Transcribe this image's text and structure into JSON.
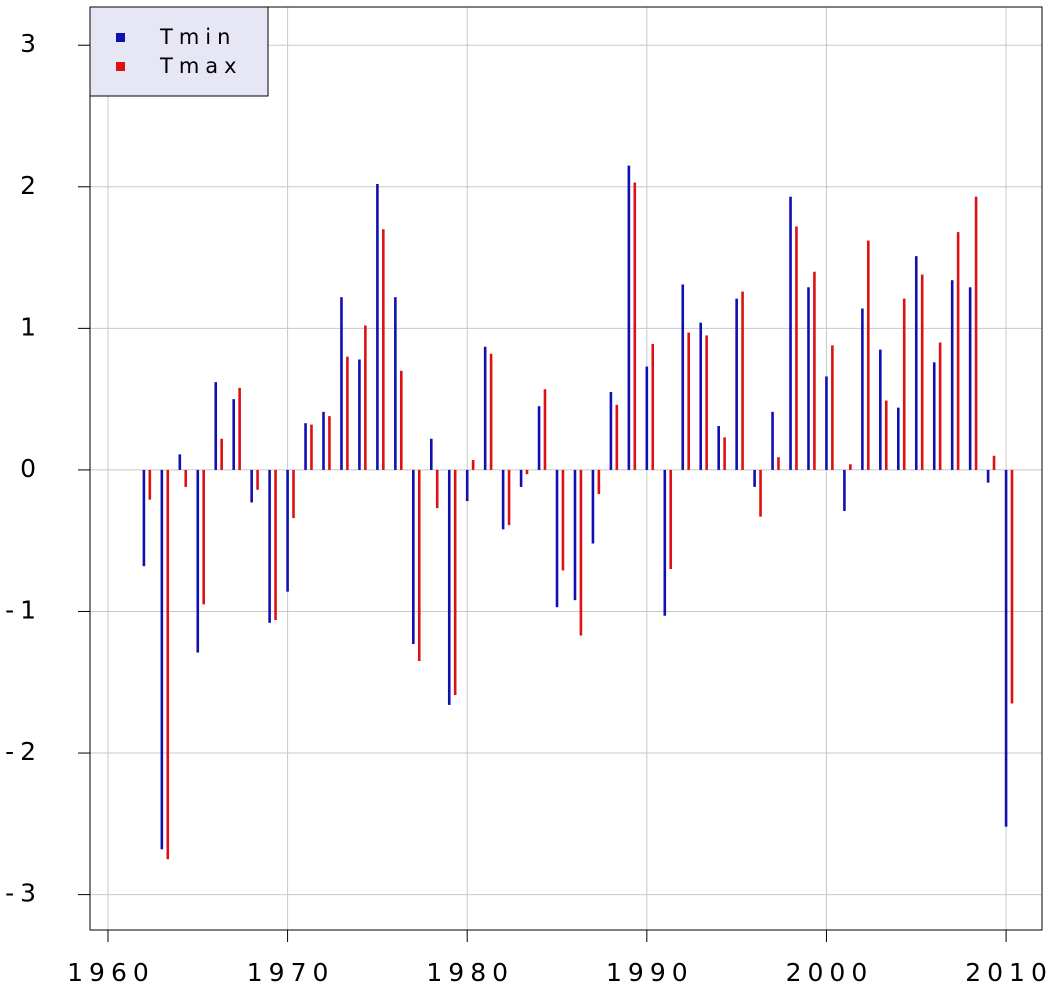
{
  "chart_data": {
    "type": "bar",
    "x": [
      1962,
      1963,
      1964,
      1965,
      1966,
      1967,
      1968,
      1969,
      1970,
      1971,
      1972,
      1973,
      1974,
      1975,
      1976,
      1977,
      1978,
      1979,
      1980,
      1981,
      1982,
      1983,
      1984,
      1985,
      1986,
      1987,
      1988,
      1989,
      1990,
      1991,
      1992,
      1993,
      1994,
      1995,
      1996,
      1997,
      1998,
      1999,
      2000,
      2001,
      2002,
      2003,
      2004,
      2005,
      2006,
      2007,
      2008,
      2009,
      2010
    ],
    "series": [
      {
        "name": "Tmin",
        "color": "#1010b0",
        "values": [
          -0.68,
          -2.68,
          0.11,
          -1.29,
          0.62,
          0.5,
          -0.23,
          -1.08,
          -0.86,
          0.33,
          0.41,
          1.22,
          0.78,
          2.02,
          1.22,
          -1.23,
          0.22,
          -1.66,
          -0.22,
          0.87,
          -0.42,
          -0.12,
          0.45,
          -0.97,
          -0.92,
          -0.52,
          0.55,
          2.15,
          0.73,
          -1.03,
          1.31,
          1.04,
          0.31,
          1.21,
          -0.12,
          0.41,
          1.93,
          1.29,
          0.66,
          -0.29,
          1.14,
          0.85,
          0.44,
          1.51,
          0.76,
          1.34,
          1.29,
          -0.09,
          -2.52
        ]
      },
      {
        "name": "Tmax",
        "color": "#dd1111",
        "values": [
          -0.21,
          -2.75,
          -0.12,
          -0.95,
          0.22,
          0.58,
          -0.14,
          -1.06,
          -0.34,
          0.32,
          0.38,
          0.8,
          1.02,
          1.7,
          0.7,
          -1.35,
          -0.27,
          -1.59,
          0.07,
          0.82,
          -0.39,
          -0.03,
          0.57,
          -0.71,
          -1.17,
          -0.17,
          0.46,
          2.03,
          0.89,
          -0.7,
          0.97,
          0.95,
          0.23,
          1.26,
          -0.33,
          0.09,
          1.72,
          1.4,
          0.88,
          0.04,
          1.62,
          0.49,
          1.21,
          1.38,
          0.9,
          1.68,
          1.93,
          0.1,
          -1.65
        ]
      }
    ],
    "xlim": [
      1959,
      2012
    ],
    "xticks": [
      1960,
      1970,
      1980,
      1990,
      2000,
      2010
    ],
    "ylim": [
      -3.25,
      3.27
    ],
    "yticks": [
      -3,
      -2,
      -1,
      0,
      1,
      2,
      3
    ],
    "grid": true,
    "legend": "top-left"
  }
}
